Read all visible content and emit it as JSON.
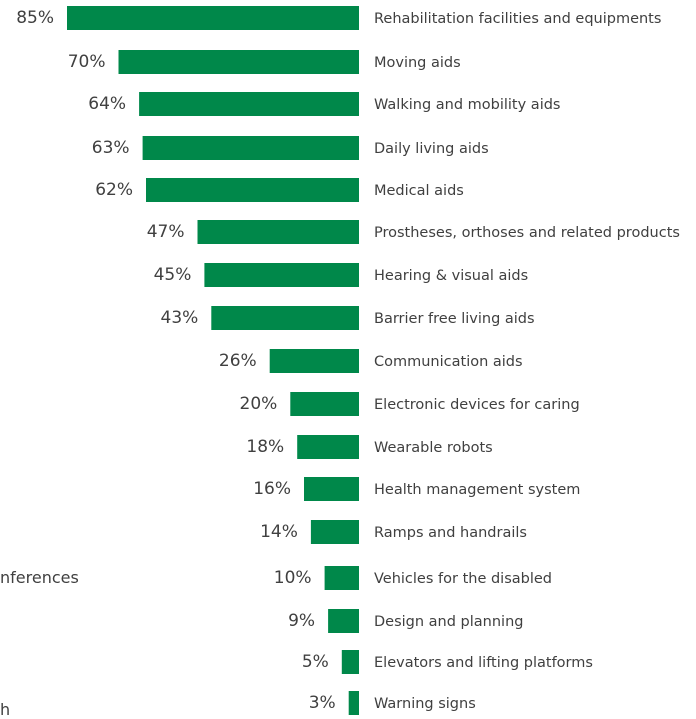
{
  "colors": {
    "bar": "#00884A",
    "text": "#404040",
    "background": "#ffffff"
  },
  "left_cut_labels": {
    "label_1": "nferences",
    "label_2": "h"
  },
  "chart_data": {
    "type": "bar",
    "orientation": "horizontal",
    "title": "",
    "xlabel": "",
    "ylabel": "",
    "xlim": [
      0,
      100
    ],
    "value_suffix": "%",
    "grid": false,
    "legend": "none",
    "categories": [
      "Rehabilitation facilities and equipments",
      "Moving aids",
      "Walking and mobility aids",
      "Daily living aids",
      "Medical aids",
      "Prostheses, orthoses and related products",
      "Hearing & visual aids",
      "Barrier free living aids",
      "Communication aids",
      "Electronic devices for caring",
      "Wearable robots",
      "Health management system",
      "Ramps and handrails",
      "Vehicles for the disabled",
      "Design and planning",
      "Elevators and lifting platforms",
      "Warning signs"
    ],
    "values": [
      85,
      70,
      64,
      63,
      62,
      47,
      45,
      43,
      26,
      20,
      18,
      16,
      14,
      10,
      9,
      5,
      3
    ]
  }
}
